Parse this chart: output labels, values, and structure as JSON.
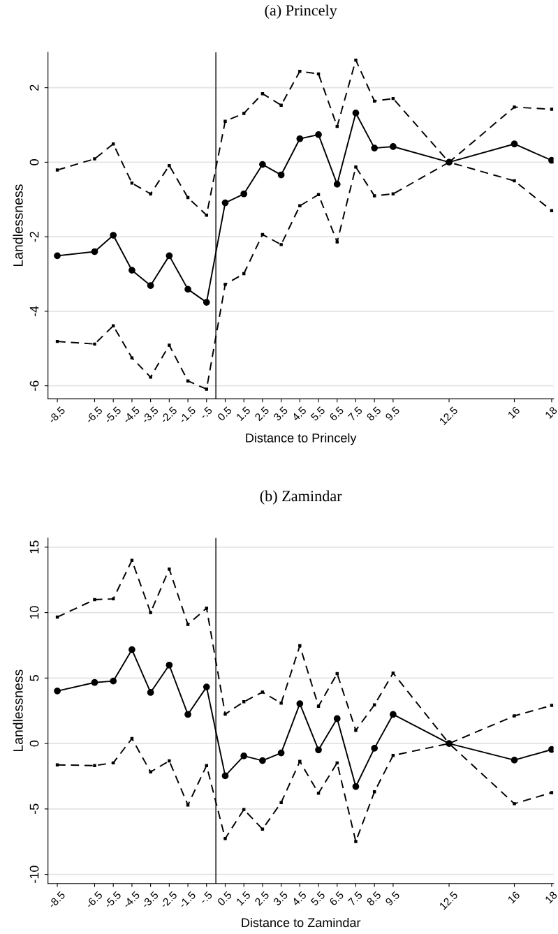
{
  "chart_data": [
    {
      "type": "line",
      "title": "(a) Princely",
      "xlabel": "Distance to Princely",
      "ylabel": "Landlessness",
      "x": [
        -8.5,
        -6.5,
        -5.5,
        -4.5,
        -3.5,
        -2.5,
        -1.5,
        -0.5,
        0.5,
        1.5,
        2.5,
        3.5,
        4.5,
        5.5,
        6.5,
        7.5,
        8.5,
        9.5,
        12.5,
        16,
        18
      ],
      "series": [
        {
          "color": "#000000",
          "marker": "circle",
          "line_style": "solid",
          "values": [
            -2.51,
            -2.4,
            -1.96,
            -2.9,
            -3.31,
            -2.51,
            -3.41,
            -3.76,
            -1.09,
            -0.85,
            -0.06,
            -0.34,
            0.63,
            0.74,
            -0.59,
            1.32,
            0.38,
            0.42,
            0,
            0.49,
            0.05
          ]
        },
        {
          "color": "#000000",
          "marker": "square",
          "line_style": "dashed",
          "values": [
            -0.21,
            0.09,
            0.49,
            -0.56,
            -0.85,
            -0.09,
            -0.95,
            -1.42,
            1.1,
            1.31,
            1.84,
            1.53,
            2.44,
            2.37,
            0.96,
            2.74,
            1.64,
            1.71,
            0,
            1.48,
            1.42
          ]
        },
        {
          "color": "#000000",
          "marker": "square",
          "line_style": "dashed",
          "values": [
            -4.81,
            -4.88,
            -4.39,
            -5.25,
            -5.77,
            -4.91,
            -5.87,
            -6.09,
            -3.28,
            -2.99,
            -1.94,
            -2.21,
            -1.17,
            -0.87,
            -2.14,
            -0.13,
            -0.9,
            -0.85,
            0,
            -0.5,
            -1.3
          ]
        }
      ],
      "xlim": [
        -9,
        18.1
      ],
      "xticks": [
        -8.5,
        -6.5,
        -5.5,
        -4.5,
        -3.5,
        -2.5,
        -1.5,
        {
          "value": -0.5,
          "label": "-.5"
        },
        0.5,
        1.5,
        2.5,
        3.5,
        4.5,
        5.5,
        6.5,
        7.5,
        8.5,
        9.5,
        12.5,
        16,
        18
      ],
      "ylim": [
        -6.35,
        2.95
      ],
      "yticks": [
        -6,
        -4,
        -2,
        0,
        2
      ],
      "grid": "y",
      "ref_lines": [
        {
          "axis": "x",
          "value": 0,
          "color": "#333333"
        }
      ]
    },
    {
      "type": "line",
      "title": "(b) Zamindar",
      "xlabel": "Distance to Zamindar",
      "ylabel": "Landlessness",
      "x": [
        -8.5,
        -6.5,
        -5.5,
        -4.5,
        -3.5,
        -2.5,
        -1.5,
        -0.5,
        0.5,
        1.5,
        2.5,
        3.5,
        4.5,
        5.5,
        6.5,
        7.5,
        8.5,
        9.5,
        12.5,
        16,
        18
      ],
      "series": [
        {
          "color": "#000000",
          "marker": "circle",
          "line_style": "solid",
          "values": [
            4.01,
            4.66,
            4.77,
            7.17,
            3.9,
            5.99,
            2.22,
            4.32,
            -2.47,
            -0.95,
            -1.31,
            -0.72,
            3.04,
            -0.49,
            1.9,
            -3.29,
            -0.36,
            2.22,
            0,
            -1.27,
            -0.46
          ]
        },
        {
          "color": "#000000",
          "marker": "square",
          "line_style": "dashed",
          "values": [
            9.66,
            10.99,
            11.05,
            13.99,
            10.0,
            13.33,
            9.09,
            10.34,
            2.24,
            3.19,
            3.92,
            3.08,
            7.47,
            2.85,
            5.34,
            1.01,
            2.95,
            5.38,
            0,
            2.11,
            2.91
          ]
        },
        {
          "color": "#000000",
          "marker": "square",
          "line_style": "dashed",
          "values": [
            -1.63,
            -1.69,
            -1.48,
            0.38,
            -2.17,
            -1.33,
            -4.7,
            -1.69,
            -7.26,
            -5.04,
            -6.54,
            -4.51,
            -1.37,
            -3.8,
            -1.48,
            -7.49,
            -3.69,
            -0.91,
            0,
            -4.6,
            -3.75
          ]
        }
      ],
      "xlim": [
        -9,
        18.1
      ],
      "xticks": [
        -8.5,
        -6.5,
        -5.5,
        -4.5,
        -3.5,
        -2.5,
        -1.5,
        {
          "value": -0.5,
          "label": "-.5"
        },
        0.5,
        1.5,
        2.5,
        3.5,
        4.5,
        5.5,
        6.5,
        7.5,
        8.5,
        9.5,
        12.5,
        16,
        18
      ],
      "ylim": [
        -10.7,
        15.7
      ],
      "yticks": [
        -10,
        -5,
        0,
        5,
        10,
        15
      ],
      "grid": "y",
      "ref_lines": [
        {
          "axis": "x",
          "value": 0,
          "color": "#333333"
        }
      ]
    }
  ]
}
